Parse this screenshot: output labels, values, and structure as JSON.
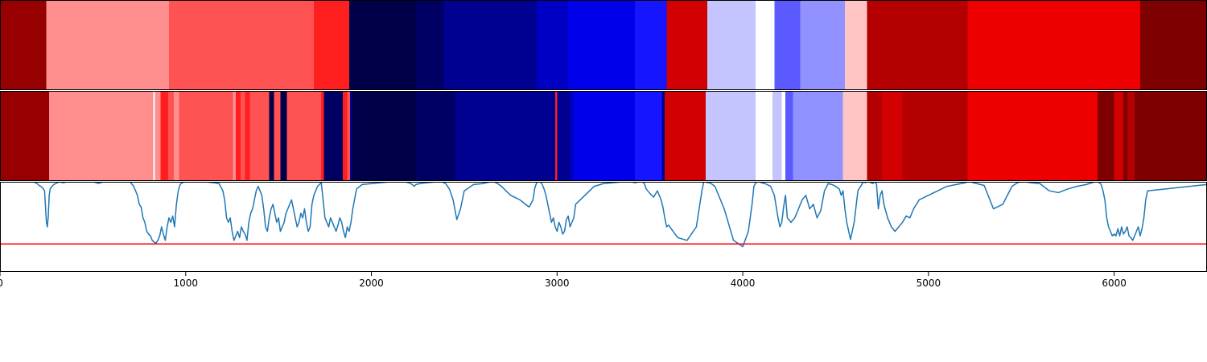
{
  "chart_data": {
    "type": "heatmap",
    "xlim": [
      0,
      6500
    ],
    "x_ticks": [
      0,
      1000,
      2000,
      3000,
      4000,
      5000,
      6000
    ],
    "x_tick_labels": [
      "0",
      "1000",
      "2000",
      "3000",
      "4000",
      "5000",
      "6000"
    ],
    "colormap": "seismic",
    "rows": [
      {
        "segments": [
          {
            "start": 0,
            "end": 250,
            "color": "#960000"
          },
          {
            "start": 250,
            "end": 910,
            "color": "#ff8f8f"
          },
          {
            "start": 910,
            "end": 1690,
            "color": "#ff5252"
          },
          {
            "start": 1690,
            "end": 1880,
            "color": "#ff1f1f"
          },
          {
            "start": 1880,
            "end": 2240,
            "color": "#000049"
          },
          {
            "start": 2240,
            "end": 2390,
            "color": "#000064"
          },
          {
            "start": 2390,
            "end": 2890,
            "color": "#000091"
          },
          {
            "start": 2890,
            "end": 3060,
            "color": "#0000c4"
          },
          {
            "start": 3060,
            "end": 3420,
            "color": "#0000eb"
          },
          {
            "start": 3420,
            "end": 3590,
            "color": "#1515ff"
          },
          {
            "start": 3590,
            "end": 3810,
            "color": "#d20000"
          },
          {
            "start": 3810,
            "end": 4070,
            "color": "#c4c4ff"
          },
          {
            "start": 4070,
            "end": 4170,
            "color": "#ffffff"
          },
          {
            "start": 4170,
            "end": 4310,
            "color": "#5a5aff"
          },
          {
            "start": 4310,
            "end": 4550,
            "color": "#9191ff"
          },
          {
            "start": 4550,
            "end": 4670,
            "color": "#ffc4c4"
          },
          {
            "start": 4670,
            "end": 5210,
            "color": "#b40000"
          },
          {
            "start": 5210,
            "end": 6140,
            "color": "#ee0000"
          },
          {
            "start": 6140,
            "end": 6500,
            "color": "#7f0000"
          }
        ]
      },
      {
        "segments": [
          {
            "start": 0,
            "end": 265,
            "color": "#960000"
          },
          {
            "start": 265,
            "end": 825,
            "color": "#ff8f8f"
          },
          {
            "start": 825,
            "end": 835,
            "color": "#ffffff"
          },
          {
            "start": 835,
            "end": 865,
            "color": "#ff8f8f"
          },
          {
            "start": 865,
            "end": 905,
            "color": "#ff1f1f"
          },
          {
            "start": 905,
            "end": 935,
            "color": "#ff5252"
          },
          {
            "start": 935,
            "end": 965,
            "color": "#ff8f8f"
          },
          {
            "start": 965,
            "end": 1255,
            "color": "#ff5252"
          },
          {
            "start": 1255,
            "end": 1270,
            "color": "#ff8f8f"
          },
          {
            "start": 1270,
            "end": 1295,
            "color": "#ff1f1f"
          },
          {
            "start": 1295,
            "end": 1320,
            "color": "#ff5252"
          },
          {
            "start": 1320,
            "end": 1345,
            "color": "#ff1f1f"
          },
          {
            "start": 1345,
            "end": 1450,
            "color": "#ff5252"
          },
          {
            "start": 1450,
            "end": 1475,
            "color": "#000049"
          },
          {
            "start": 1475,
            "end": 1510,
            "color": "#ff5252"
          },
          {
            "start": 1510,
            "end": 1545,
            "color": "#000049"
          },
          {
            "start": 1545,
            "end": 1730,
            "color": "#ff5252"
          },
          {
            "start": 1730,
            "end": 1745,
            "color": "#ff1f1f"
          },
          {
            "start": 1745,
            "end": 1845,
            "color": "#000064"
          },
          {
            "start": 1845,
            "end": 1870,
            "color": "#ff1f1f"
          },
          {
            "start": 1870,
            "end": 1885,
            "color": "#ff5252"
          },
          {
            "start": 1885,
            "end": 1895,
            "color": "#000091"
          },
          {
            "start": 1895,
            "end": 2240,
            "color": "#000049"
          },
          {
            "start": 2240,
            "end": 2450,
            "color": "#000064"
          },
          {
            "start": 2450,
            "end": 2990,
            "color": "#000091"
          },
          {
            "start": 2990,
            "end": 3000,
            "color": "#ff1f1f"
          },
          {
            "start": 3000,
            "end": 3070,
            "color": "#000091"
          },
          {
            "start": 3070,
            "end": 3090,
            "color": "#0000c4"
          },
          {
            "start": 3090,
            "end": 3420,
            "color": "#0000eb"
          },
          {
            "start": 3420,
            "end": 3565,
            "color": "#1515ff"
          },
          {
            "start": 3565,
            "end": 3580,
            "color": "#000091"
          },
          {
            "start": 3580,
            "end": 3800,
            "color": "#d20000"
          },
          {
            "start": 3800,
            "end": 4070,
            "color": "#c4c4ff"
          },
          {
            "start": 4070,
            "end": 4160,
            "color": "#ffffff"
          },
          {
            "start": 4160,
            "end": 4210,
            "color": "#c4c4ff"
          },
          {
            "start": 4210,
            "end": 4230,
            "color": "#ffffff"
          },
          {
            "start": 4230,
            "end": 4270,
            "color": "#5a5aff"
          },
          {
            "start": 4270,
            "end": 4310,
            "color": "#9191ff"
          },
          {
            "start": 4310,
            "end": 4540,
            "color": "#9191ff"
          },
          {
            "start": 4540,
            "end": 4670,
            "color": "#ffc4c4"
          },
          {
            "start": 4670,
            "end": 4750,
            "color": "#b40000"
          },
          {
            "start": 4750,
            "end": 4860,
            "color": "#d20000"
          },
          {
            "start": 4860,
            "end": 5210,
            "color": "#b40000"
          },
          {
            "start": 5210,
            "end": 5910,
            "color": "#ee0000"
          },
          {
            "start": 5910,
            "end": 6000,
            "color": "#7f0000"
          },
          {
            "start": 6000,
            "end": 6050,
            "color": "#d20000"
          },
          {
            "start": 6050,
            "end": 6070,
            "color": "#7f0000"
          },
          {
            "start": 6070,
            "end": 6110,
            "color": "#b40000"
          },
          {
            "start": 6110,
            "end": 6500,
            "color": "#7f0000"
          }
        ]
      }
    ],
    "line_panel": {
      "ylim": [
        0,
        1
      ],
      "threshold": 0.31,
      "threshold_color": "#ff0000",
      "line_color": "#1f77b4",
      "x": [
        0,
        50,
        100,
        140,
        160,
        180,
        190,
        200,
        210,
        220,
        230,
        240,
        250,
        255,
        260,
        265,
        270,
        280,
        290,
        300,
        310,
        320,
        340,
        360,
        400,
        450,
        500,
        520,
        530,
        540,
        560,
        600,
        650,
        700,
        720,
        740,
        750,
        760,
        770,
        780,
        790,
        800,
        810,
        820,
        830,
        840,
        850,
        860,
        870,
        880,
        890,
        900,
        910,
        920,
        930,
        940,
        950,
        960,
        970,
        980,
        1000,
        1050,
        1100,
        1150,
        1180,
        1200,
        1210,
        1220,
        1230,
        1240,
        1250,
        1260,
        1270,
        1280,
        1290,
        1300,
        1310,
        1320,
        1330,
        1340,
        1350,
        1360,
        1370,
        1380,
        1390,
        1400,
        1410,
        1420,
        1430,
        1440,
        1450,
        1460,
        1470,
        1480,
        1490,
        1500,
        1510,
        1520,
        1530,
        1540,
        1550,
        1560,
        1570,
        1580,
        1590,
        1600,
        1610,
        1620,
        1630,
        1640,
        1650,
        1660,
        1670,
        1680,
        1690,
        1700,
        1710,
        1720,
        1730,
        1740,
        1750,
        1760,
        1770,
        1780,
        1790,
        1800,
        1810,
        1820,
        1830,
        1840,
        1850,
        1860,
        1870,
        1880,
        1890,
        1900,
        1920,
        1950,
        2000,
        2050,
        2100,
        2150,
        2180,
        2200,
        2210,
        2220,
        2230,
        2240,
        2260,
        2300,
        2350,
        2380,
        2400,
        2420,
        2440,
        2460,
        2480,
        2500,
        2550,
        2600,
        2620,
        2640,
        2660,
        2680,
        2700,
        2750,
        2800,
        2830,
        2850,
        2870,
        2880,
        2890,
        2900,
        2910,
        2920,
        2930,
        2940,
        2950,
        2960,
        2970,
        2980,
        2990,
        3000,
        3010,
        3020,
        3030,
        3040,
        3050,
        3060,
        3070,
        3080,
        3090,
        3100,
        3150,
        3200,
        3250,
        3300,
        3350,
        3400,
        3420,
        3440,
        3460,
        3470,
        3480,
        3500,
        3520,
        3540,
        3560,
        3570,
        3580,
        3590,
        3600,
        3650,
        3700,
        3750,
        3780,
        3790,
        3800,
        3810,
        3820,
        3830,
        3850,
        3900,
        3950,
        4000,
        4030,
        4050,
        4060,
        4070,
        4080,
        4090,
        4100,
        4120,
        4150,
        4170,
        4190,
        4200,
        4210,
        4220,
        4230,
        4240,
        4260,
        4280,
        4300,
        4320,
        4340,
        4360,
        4380,
        4400,
        4420,
        4440,
        4460,
        4480,
        4500,
        4520,
        4530,
        4540,
        4550,
        4560,
        4580,
        4600,
        4620,
        4650,
        4660,
        4670,
        4680,
        4690,
        4700,
        4710,
        4720,
        4730,
        4740,
        4750,
        4760,
        4780,
        4800,
        4820,
        4840,
        4860,
        4880,
        4900,
        4920,
        4950,
        5000,
        5050,
        5100,
        5150,
        5200,
        5210,
        5220,
        5230,
        5240,
        5260,
        5300,
        5350,
        5400,
        5450,
        5480,
        5500,
        5520,
        5550,
        5600,
        5650,
        5700,
        5750,
        5800,
        5850,
        5880,
        5900,
        5910,
        5920,
        5930,
        5940,
        5950,
        5960,
        5970,
        5980,
        5990,
        6000,
        6010,
        6020,
        6030,
        6040,
        6050,
        6060,
        6070,
        6080,
        6090,
        6100,
        6110,
        6120,
        6130,
        6140,
        6150,
        6160,
        6170,
        6180,
        6500
      ],
      "y": [
        1.0,
        1.0,
        1.0,
        1.0,
        1.0,
        1.0,
        0.99,
        0.98,
        0.96,
        0.95,
        0.93,
        0.9,
        0.55,
        0.5,
        0.62,
        0.85,
        0.92,
        0.95,
        0.97,
        0.98,
        0.99,
        1.0,
        0.99,
        1.0,
        1.0,
        1.0,
        1.0,
        0.99,
        0.98,
        0.99,
        1.0,
        1.0,
        1.0,
        1.0,
        0.95,
        0.85,
        0.75,
        0.72,
        0.6,
        0.55,
        0.45,
        0.42,
        0.4,
        0.35,
        0.33,
        0.32,
        0.35,
        0.4,
        0.5,
        0.42,
        0.35,
        0.5,
        0.6,
        0.55,
        0.62,
        0.5,
        0.75,
        0.9,
        0.97,
        0.99,
        1.0,
        1.0,
        1.0,
        0.99,
        0.98,
        0.9,
        0.8,
        0.6,
        0.55,
        0.6,
        0.45,
        0.35,
        0.4,
        0.45,
        0.38,
        0.5,
        0.45,
        0.42,
        0.35,
        0.55,
        0.65,
        0.7,
        0.8,
        0.9,
        0.95,
        0.9,
        0.85,
        0.7,
        0.5,
        0.45,
        0.6,
        0.7,
        0.75,
        0.65,
        0.55,
        0.6,
        0.45,
        0.5,
        0.55,
        0.65,
        0.7,
        0.75,
        0.8,
        0.7,
        0.6,
        0.5,
        0.55,
        0.65,
        0.6,
        0.7,
        0.55,
        0.45,
        0.5,
        0.75,
        0.85,
        0.9,
        0.95,
        0.97,
        0.99,
        0.8,
        0.6,
        0.55,
        0.5,
        0.6,
        0.55,
        0.5,
        0.45,
        0.52,
        0.6,
        0.55,
        0.45,
        0.38,
        0.5,
        0.45,
        0.55,
        0.7,
        0.92,
        0.97,
        0.98,
        0.99,
        1.0,
        1.0,
        1.0,
        0.99,
        0.98,
        0.97,
        0.95,
        0.97,
        0.98,
        0.99,
        1.0,
        1.0,
        0.98,
        0.92,
        0.8,
        0.58,
        0.7,
        0.9,
        0.97,
        0.98,
        0.99,
        1.0,
        1.0,
        0.98,
        0.95,
        0.85,
        0.8,
        0.75,
        0.72,
        0.8,
        0.93,
        0.99,
        1.0,
        1.0,
        0.97,
        0.92,
        0.85,
        0.75,
        0.65,
        0.55,
        0.6,
        0.5,
        0.45,
        0.55,
        0.5,
        0.42,
        0.45,
        0.58,
        0.62,
        0.5,
        0.55,
        0.6,
        0.75,
        0.85,
        0.95,
        0.98,
        0.99,
        1.0,
        1.0,
        0.99,
        1.0,
        1.0,
        0.98,
        0.92,
        0.87,
        0.83,
        0.9,
        0.8,
        0.72,
        0.6,
        0.5,
        0.52,
        0.38,
        0.35,
        0.5,
        0.9,
        1.0,
        1.0,
        0.99,
        0.99,
        0.98,
        0.95,
        0.7,
        0.35,
        0.28,
        0.45,
        0.75,
        0.95,
        0.99,
        1.0,
        1.0,
        0.99,
        0.98,
        0.95,
        0.85,
        0.6,
        0.5,
        0.55,
        0.72,
        0.85,
        0.6,
        0.55,
        0.6,
        0.7,
        0.8,
        0.85,
        0.7,
        0.75,
        0.6,
        0.68,
        0.9,
        0.98,
        0.97,
        0.95,
        0.92,
        0.85,
        0.9,
        0.7,
        0.55,
        0.36,
        0.55,
        0.9,
        1.0,
        0.99,
        1.0,
        1.0,
        0.99,
        0.98,
        1.0,
        0.98,
        0.7,
        0.85,
        0.9,
        0.75,
        0.6,
        0.5,
        0.45,
        0.5,
        0.55,
        0.62,
        0.6,
        0.7,
        0.8,
        0.85,
        0.9,
        0.95,
        0.97,
        0.99,
        1.0,
        1.0,
        1.0,
        0.99,
        0.98,
        0.96,
        0.7,
        0.75,
        0.95,
        0.99,
        1.0,
        1.0,
        0.99,
        0.98,
        0.9,
        0.88,
        0.92,
        0.95,
        0.97,
        0.99,
        1.0,
        1.0,
        0.99,
        0.97,
        0.9,
        0.8,
        0.6,
        0.5,
        0.45,
        0.4,
        0.42,
        0.4,
        0.48,
        0.4,
        0.5,
        0.42,
        0.45,
        0.5,
        0.4,
        0.38,
        0.35,
        0.4,
        0.45,
        0.5,
        0.4,
        0.48,
        0.6,
        0.8,
        0.9,
        0.97,
        1.0
      ]
    }
  }
}
